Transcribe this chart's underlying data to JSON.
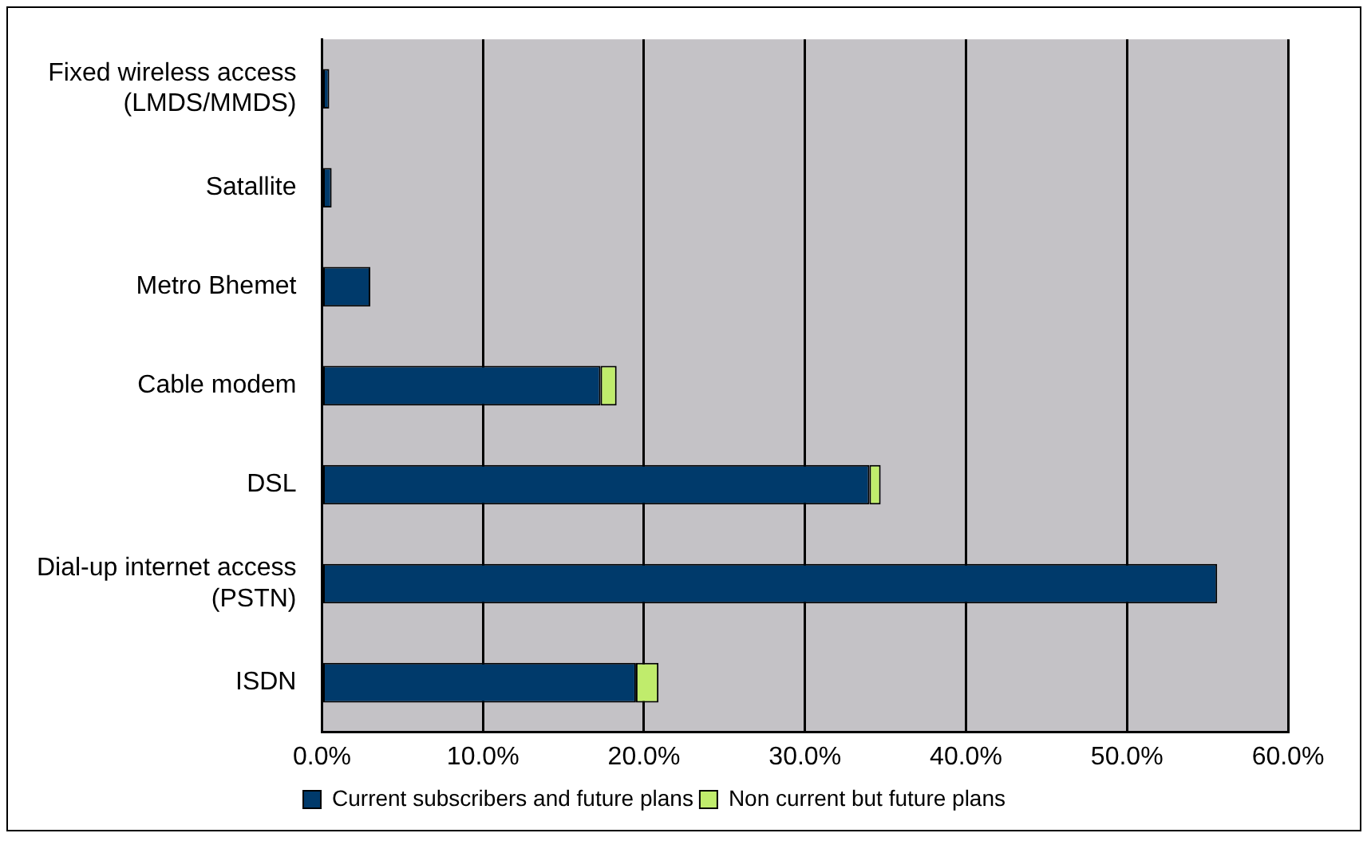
{
  "chart_data": {
    "type": "bar",
    "orientation": "horizontal",
    "stacked": true,
    "categories": [
      "Fixed wireless access (LMDS/MMDS)",
      "Satallite",
      "Metro Bhemet",
      "Cable modem",
      "DSL",
      "Dial-up internet access (PSTN)",
      "ISDN"
    ],
    "series": [
      {
        "name": "Current subscribers and future plans",
        "color": "#003a6b",
        "values": [
          0.45,
          0.6,
          3.0,
          17.3,
          34.0,
          55.6,
          19.5
        ]
      },
      {
        "name": "Non current but future plans",
        "color": "#c0ec6c",
        "values": [
          null,
          null,
          null,
          1.0,
          0.7,
          null,
          1.4
        ]
      }
    ],
    "xlim": [
      0,
      60
    ],
    "xticks": [
      {
        "value": 0,
        "label": "0.0%"
      },
      {
        "value": 10,
        "label": "10.0%"
      },
      {
        "value": 20,
        "label": "20.0%"
      },
      {
        "value": 30,
        "label": "30.0%"
      },
      {
        "value": 40,
        "label": "40.0%"
      },
      {
        "value": 50,
        "label": "50.0%"
      },
      {
        "value": 60,
        "label": "60.0%"
      }
    ],
    "grid": "x",
    "legend": "bottom"
  }
}
